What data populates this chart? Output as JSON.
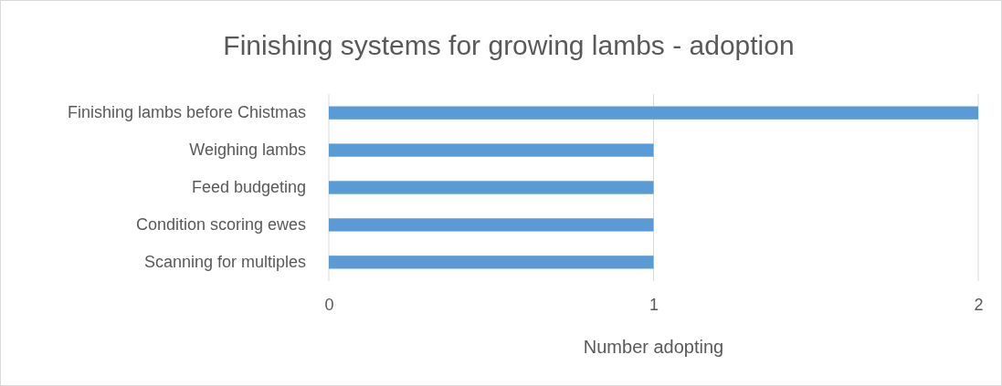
{
  "chart_data": {
    "type": "bar",
    "orientation": "horizontal",
    "title": "Finishing systems for growing lambs - adoption",
    "xlabel": "Number adopting",
    "categories": [
      "Finishing lambs before Chistmas",
      "Weighing lambs",
      "Feed budgeting",
      "Condition scoring ewes",
      "Scanning for multiples"
    ],
    "values": [
      2,
      1,
      1,
      1,
      1
    ],
    "color": "#5b9bd5",
    "xlim": [
      0,
      2
    ],
    "xticks": [
      0,
      1,
      2
    ],
    "grid": "x"
  }
}
